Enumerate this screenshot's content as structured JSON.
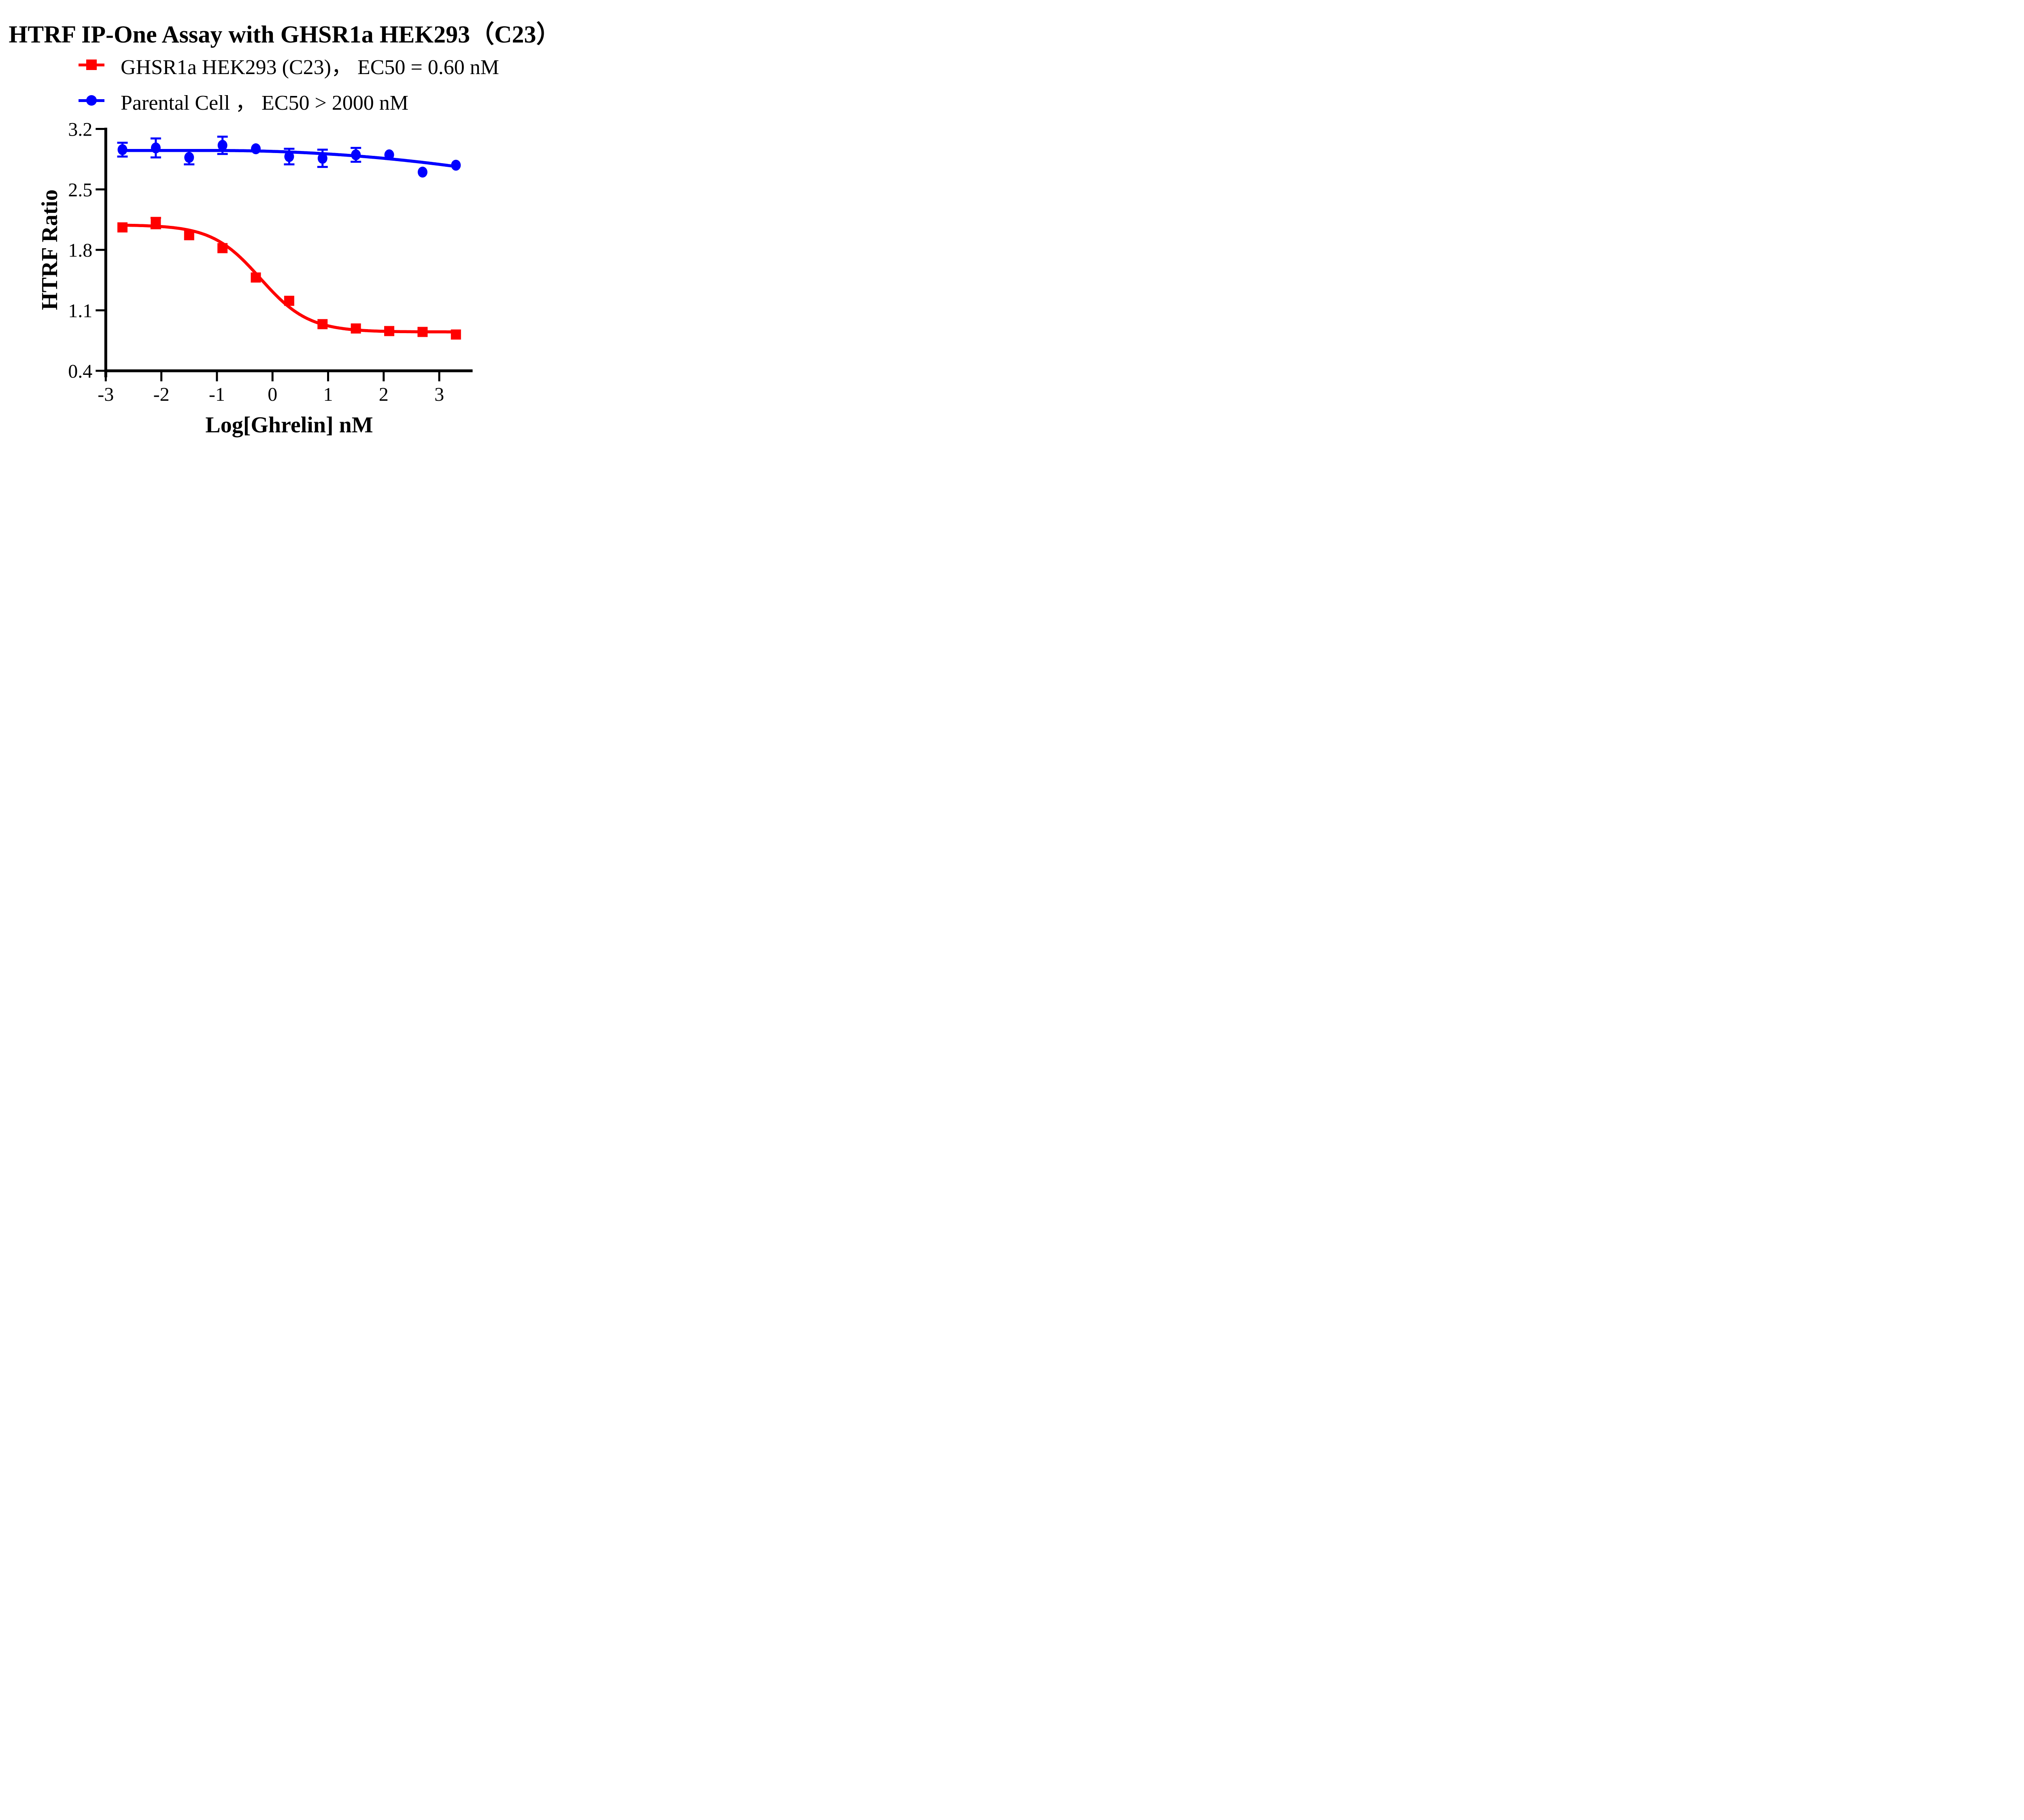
{
  "title": "HTRF IP-One Assay with GHSR1a HEK293（C23）",
  "legend": {
    "row1_label": "GHSR1a HEK293 (C23)， EC50 = 0.60 nM",
    "row2_label": "Parental Cell ， EC50 > 2000 nM"
  },
  "chart_data": {
    "type": "line",
    "title": "HTRF IP-One Assay with GHSR1a HEK293（C23）",
    "xlabel": "Log[Ghrelin] nM",
    "ylabel": "HTRF Ratio",
    "xlim": [
      -3,
      3.6
    ],
    "ylim": [
      0.4,
      3.2
    ],
    "grid": false,
    "legend_position": "top-left-above-plot",
    "x_ticks": [
      -3,
      -2,
      -1,
      0,
      1,
      2,
      3
    ],
    "x_tick_labels": [
      "-3",
      "-2",
      "-1",
      "0",
      "1",
      "2",
      "3"
    ],
    "y_ticks": [
      3.2,
      2.5,
      1.8,
      1.1,
      0.4
    ],
    "y_tick_labels": [
      "3.2",
      "2.5",
      "1.8",
      "1.1",
      "0.4"
    ],
    "x": [
      -2.7,
      -2.1,
      -1.5,
      -0.9,
      -0.3,
      0.3,
      0.9,
      1.5,
      2.1,
      2.7,
      3.3
    ],
    "series": [
      {
        "name": "GHSR1a HEK293 (C23)",
        "legend_label": "GHSR1a HEK293 (C23)， EC50 = 0.60 nM",
        "ec50_text": "EC50 = 0.60 nM",
        "color": "#FF0000",
        "marker": "square",
        "values": [
          2.06,
          2.11,
          1.97,
          1.82,
          1.48,
          1.21,
          0.94,
          0.89,
          0.86,
          0.85,
          0.82
        ],
        "errors": [
          0,
          0.06,
          0,
          0,
          0,
          0,
          0,
          0,
          0,
          0,
          0
        ],
        "fit": {
          "model": "4PL",
          "top": 2.09,
          "bottom": 0.85,
          "logEC50": -0.22,
          "hill": 1.0
        }
      },
      {
        "name": "Parental Cell",
        "legend_label": "Parental Cell ， EC50 > 2000 nM",
        "ec50_text": "EC50 > 2000 nM",
        "color": "#0000FF",
        "marker": "circle",
        "values": [
          2.96,
          2.98,
          2.87,
          3.01,
          2.97,
          2.88,
          2.86,
          2.9,
          2.9,
          2.7,
          2.78
        ],
        "errors": [
          0.08,
          0.11,
          0.08,
          0.1,
          0,
          0.09,
          0.1,
          0.08,
          0,
          0,
          0
        ],
        "fit": {
          "model": "plateau-quadratic",
          "plateau": 2.95,
          "k": 0.01,
          "x0": -1.0
        }
      }
    ],
    "colors": {
      "series1": "#FF0000",
      "series2": "#0000FF",
      "axis": "#000000",
      "background": "#FFFFFF"
    }
  }
}
